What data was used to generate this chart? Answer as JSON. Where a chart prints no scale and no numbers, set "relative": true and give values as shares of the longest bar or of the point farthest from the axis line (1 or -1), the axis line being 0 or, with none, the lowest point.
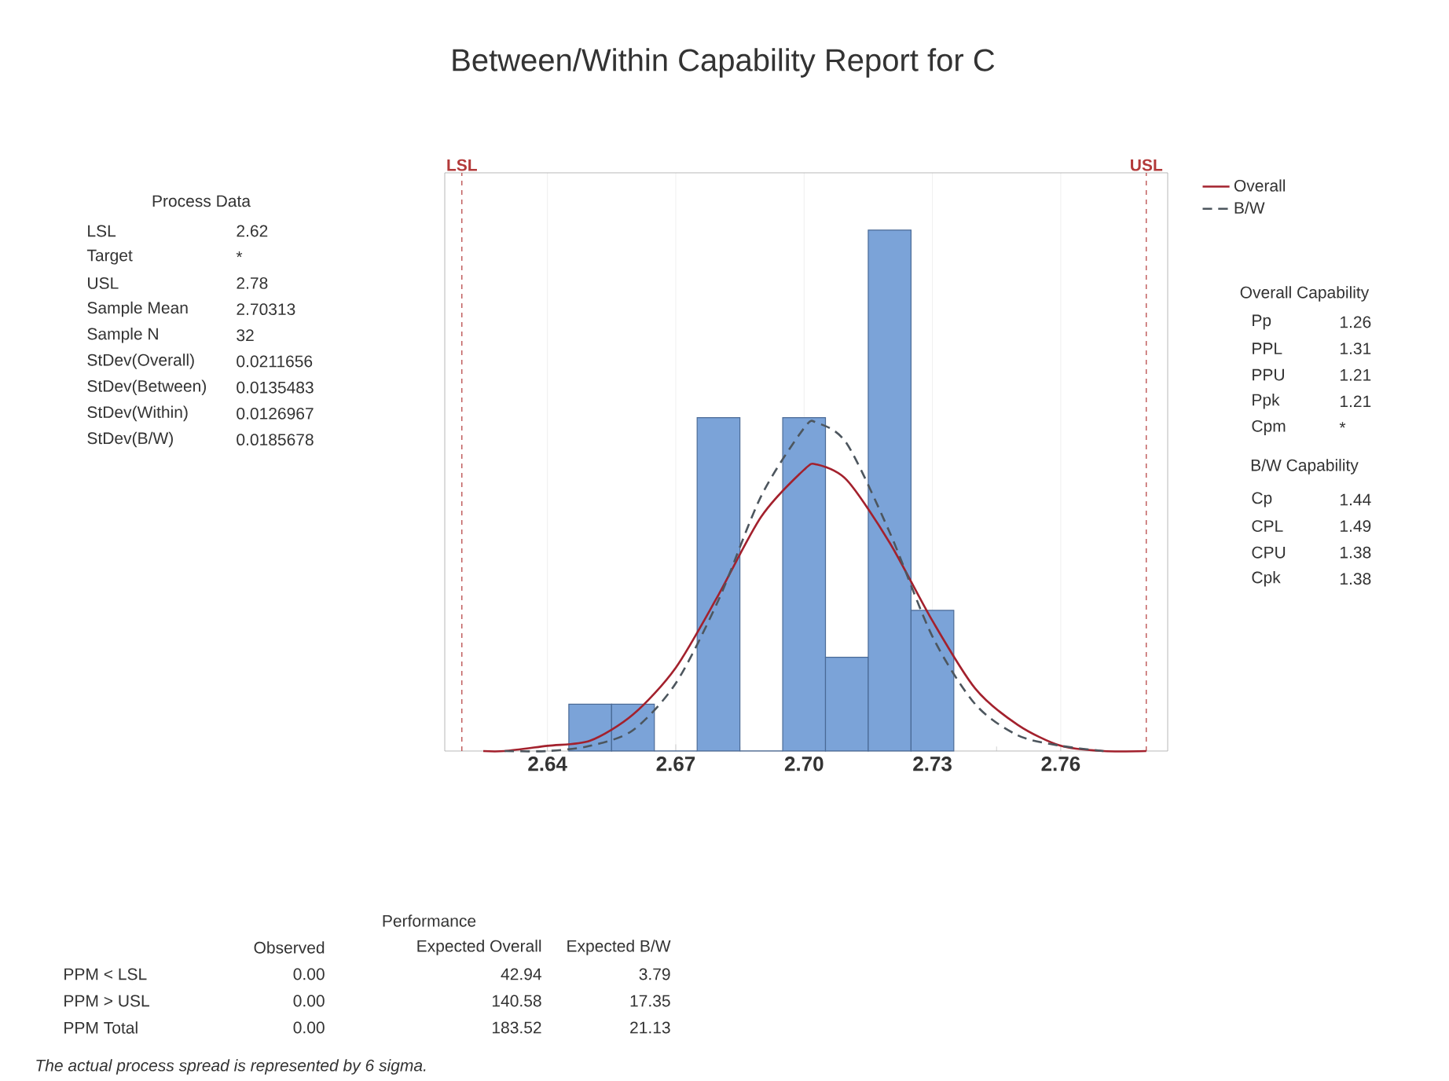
{
  "chart_data": {
    "type": "histogram",
    "title": "Between/Within Capability Report for C",
    "bins": [
      2.645,
      2.655,
      2.665,
      2.675,
      2.685,
      2.695,
      2.705,
      2.715,
      2.725,
      2.735
    ],
    "values": [
      0.09,
      0.09,
      0,
      0.64,
      0,
      0.64,
      0.18,
      1,
      0.27
    ],
    "relative": true,
    "color": "#7ba3d8",
    "xlim": [
      2.616,
      2.785
    ],
    "xticks": [
      2.64,
      2.67,
      {
        "value": 2.7,
        "label": "2.70"
      },
      2.73,
      2.76
    ],
    "grid": "x",
    "legend": "top right",
    "series": [
      {
        "name": "Overall",
        "type": "line",
        "color": "#a3212d",
        "line_style": "solid",
        "x": [
          2.625,
          2.63,
          2.64,
          2.65,
          2.66,
          2.67,
          2.68,
          2.69,
          2.7,
          2.703,
          2.71,
          2.72,
          2.73,
          2.74,
          2.75,
          2.76,
          2.77,
          2.78
        ],
        "values": [
          0,
          0,
          0.01,
          0.02,
          0.07,
          0.16,
          0.3,
          0.45,
          0.54,
          0.55,
          0.52,
          0.4,
          0.25,
          0.12,
          0.05,
          0.01,
          0,
          0
        ]
      },
      {
        "name": "B/W",
        "type": "line",
        "color": "#4d565e",
        "line_style": "dashed",
        "x": [
          2.63,
          2.64,
          2.65,
          2.66,
          2.67,
          2.68,
          2.69,
          2.7,
          2.703,
          2.71,
          2.72,
          2.73,
          2.74,
          2.75,
          2.76,
          2.77
        ],
        "values": [
          0,
          0,
          0.01,
          0.04,
          0.13,
          0.29,
          0.49,
          0.62,
          0.63,
          0.59,
          0.42,
          0.22,
          0.09,
          0.03,
          0.01,
          0
        ]
      }
    ],
    "ref_lines": [
      {
        "axis": "x",
        "value": 2.62,
        "label": "LSL",
        "color": "#b33a3a",
        "line_style": "dashed"
      },
      {
        "axis": "x",
        "value": 2.78,
        "label": "USL",
        "color": "#b33a3a",
        "line_style": "dashed"
      }
    ],
    "annotations": [
      "Process Data",
      "LSL",
      "2.62",
      "Target",
      "*",
      "USL",
      "2.78",
      "Sample Mean",
      "2.70313",
      "Sample N",
      "32",
      "StDev(Overall)",
      "0.0211656",
      "StDev(Between)",
      "0.0135483",
      "StDev(Within)",
      "0.0126967",
      "StDev(B/W)",
      "0.0185678",
      "Overall Capability",
      "Pp",
      "1.26",
      "PPL",
      "1.31",
      "PPU",
      "1.21",
      "Ppk",
      "1.21",
      "Cpm",
      "*",
      "B/W Capability",
      "Cp",
      "1.44",
      "CPL",
      "1.49",
      "CPU",
      "1.38",
      "Cpk",
      "1.38",
      "Performance",
      "Observed",
      "Expected Overall",
      "Expected B/W",
      "PPM < LSL",
      "0.00",
      "42.94",
      "3.79",
      "PPM > USL",
      "0.00",
      "140.58",
      "17.35",
      "PPM Total",
      "0.00",
      "183.52",
      "21.13",
      "The actual process spread is represented by 6 sigma."
    ]
  }
}
